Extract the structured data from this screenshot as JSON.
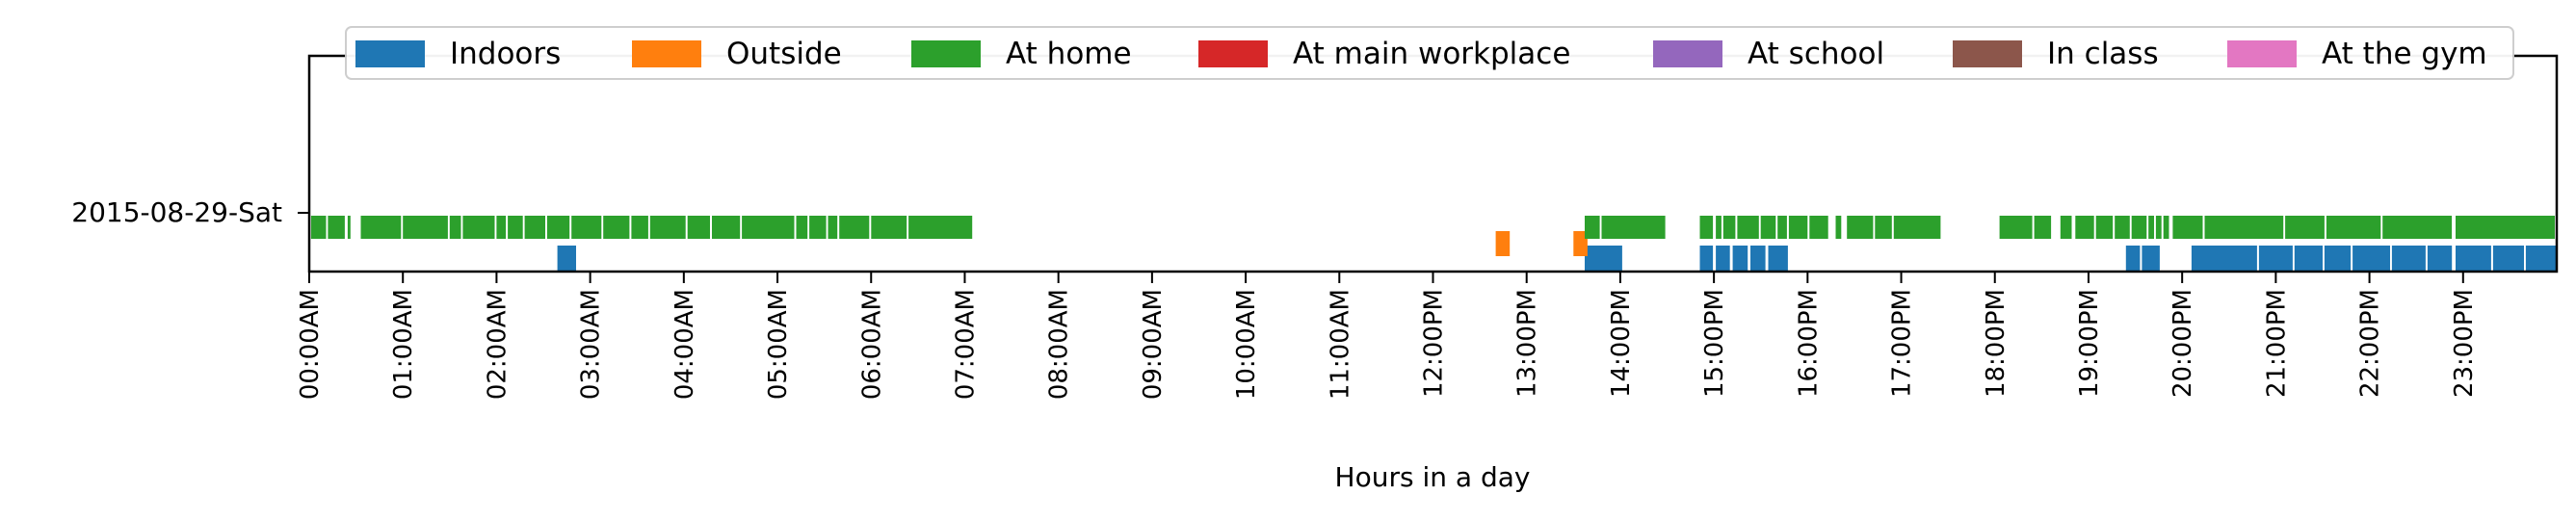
{
  "chart_data": {
    "type": "timeline",
    "title": "",
    "xlabel": "Hours in a day",
    "ylabel": "",
    "xlim": [
      0,
      24
    ],
    "x_ticks": [
      {
        "hour": 0,
        "label": "00:00AM"
      },
      {
        "hour": 1,
        "label": "01:00AM"
      },
      {
        "hour": 2,
        "label": "02:00AM"
      },
      {
        "hour": 3,
        "label": "03:00AM"
      },
      {
        "hour": 4,
        "label": "04:00AM"
      },
      {
        "hour": 5,
        "label": "05:00AM"
      },
      {
        "hour": 6,
        "label": "06:00AM"
      },
      {
        "hour": 7,
        "label": "07:00AM"
      },
      {
        "hour": 8,
        "label": "08:00AM"
      },
      {
        "hour": 9,
        "label": "09:00AM"
      },
      {
        "hour": 10,
        "label": "10:00AM"
      },
      {
        "hour": 11,
        "label": "11:00AM"
      },
      {
        "hour": 12,
        "label": "12:00PM"
      },
      {
        "hour": 13,
        "label": "13:00PM"
      },
      {
        "hour": 14,
        "label": "14:00PM"
      },
      {
        "hour": 15,
        "label": "15:00PM"
      },
      {
        "hour": 16,
        "label": "16:00PM"
      },
      {
        "hour": 17,
        "label": "17:00PM"
      },
      {
        "hour": 18,
        "label": "18:00PM"
      },
      {
        "hour": 19,
        "label": "19:00PM"
      },
      {
        "hour": 20,
        "label": "20:00PM"
      },
      {
        "hour": 21,
        "label": "21:00PM"
      },
      {
        "hour": 22,
        "label": "22:00PM"
      },
      {
        "hour": 23,
        "label": "23:00PM"
      }
    ],
    "day_label": "2015-08-29-Sat",
    "legend_position": "top",
    "grid": false,
    "series": [
      {
        "name": "Indoors",
        "color": "#1f77b4",
        "intervals": [
          [
            2.65,
            2.85
          ],
          [
            13.62,
            14.02
          ],
          [
            14.85,
            14.99
          ],
          [
            15.02,
            15.17
          ],
          [
            15.2,
            15.36
          ],
          [
            15.39,
            15.55
          ],
          [
            15.58,
            15.79
          ],
          [
            19.4,
            19.55
          ],
          [
            19.57,
            19.76
          ],
          [
            20.1,
            20.8
          ],
          [
            20.82,
            21.18
          ],
          [
            21.2,
            21.5
          ],
          [
            21.52,
            21.8
          ],
          [
            21.82,
            22.22
          ],
          [
            22.24,
            22.6
          ],
          [
            22.62,
            22.88
          ],
          [
            22.92,
            23.3
          ],
          [
            23.32,
            23.65
          ],
          [
            23.67,
            23.99
          ]
        ]
      },
      {
        "name": "Outside",
        "color": "#ff7f0e",
        "intervals": [
          [
            12.67,
            12.82
          ],
          [
            13.5,
            13.65
          ]
        ]
      },
      {
        "name": "At home",
        "color": "#2ca02c",
        "intervals": [
          [
            0.02,
            0.18
          ],
          [
            0.2,
            0.38
          ],
          [
            0.41,
            0.44
          ],
          [
            0.55,
            0.98
          ],
          [
            1.0,
            1.48
          ],
          [
            1.5,
            1.62
          ],
          [
            1.64,
            1.98
          ],
          [
            2.0,
            2.1
          ],
          [
            2.12,
            2.28
          ],
          [
            2.3,
            2.52
          ],
          [
            2.54,
            2.78
          ],
          [
            2.8,
            3.12
          ],
          [
            3.14,
            3.42
          ],
          [
            3.44,
            3.62
          ],
          [
            3.64,
            4.02
          ],
          [
            4.04,
            4.28
          ],
          [
            4.3,
            4.6
          ],
          [
            4.62,
            5.18
          ],
          [
            5.2,
            5.32
          ],
          [
            5.34,
            5.52
          ],
          [
            5.54,
            5.64
          ],
          [
            5.66,
            5.98
          ],
          [
            6.0,
            6.38
          ],
          [
            6.4,
            7.08
          ],
          [
            13.62,
            13.78
          ],
          [
            13.8,
            14.48
          ],
          [
            14.85,
            14.99
          ],
          [
            15.02,
            15.08
          ],
          [
            15.1,
            15.23
          ],
          [
            15.25,
            15.48
          ],
          [
            15.5,
            15.66
          ],
          [
            15.68,
            15.78
          ],
          [
            15.8,
            16.0
          ],
          [
            16.02,
            16.22
          ],
          [
            16.3,
            16.36
          ],
          [
            16.42,
            16.7
          ],
          [
            16.72,
            16.9
          ],
          [
            16.92,
            17.42
          ],
          [
            18.05,
            18.4
          ],
          [
            18.42,
            18.6
          ],
          [
            18.7,
            18.82
          ],
          [
            18.86,
            19.06
          ],
          [
            19.08,
            19.26
          ],
          [
            19.28,
            19.44
          ],
          [
            19.46,
            19.62
          ],
          [
            19.64,
            19.7
          ],
          [
            19.72,
            19.78
          ],
          [
            19.8,
            19.86
          ],
          [
            19.9,
            20.22
          ],
          [
            20.24,
            21.08
          ],
          [
            21.1,
            21.52
          ],
          [
            21.54,
            22.12
          ],
          [
            22.14,
            22.88
          ],
          [
            22.92,
            23.98
          ]
        ]
      },
      {
        "name": "At main workplace",
        "color": "#d62728",
        "intervals": []
      },
      {
        "name": "At school",
        "color": "#9467bd",
        "intervals": []
      },
      {
        "name": "In class",
        "color": "#8c564b",
        "intervals": []
      },
      {
        "name": "At the gym",
        "color": "#e377c2",
        "intervals": []
      }
    ]
  }
}
